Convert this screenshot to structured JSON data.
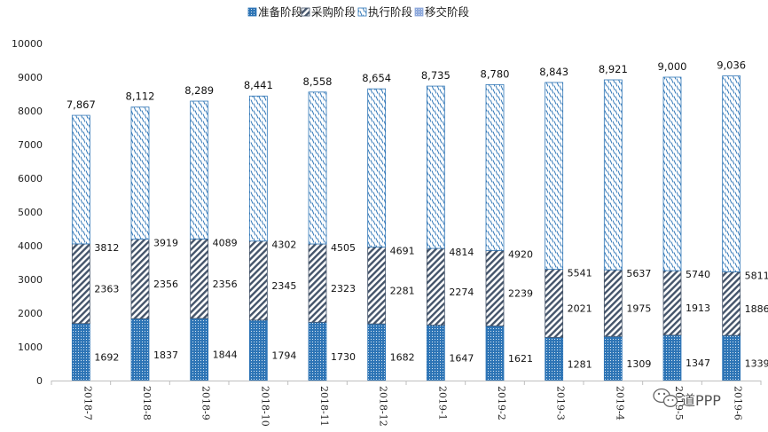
{
  "chart_data": {
    "type": "bar",
    "stacked": true,
    "categories": [
      "2018-7",
      "2018-8",
      "2018-9",
      "2018-10",
      "2018-11",
      "2018-12",
      "2019-1",
      "2019-2",
      "2019-3",
      "2019-4",
      "2019-5",
      "2019-6"
    ],
    "series": [
      {
        "name": "准备阶段",
        "values": [
          1692,
          1837,
          1844,
          1794,
          1730,
          1682,
          1647,
          1621,
          1281,
          1309,
          1347,
          1339
        ],
        "color": "#2e75b6"
      },
      {
        "name": "采购阶段",
        "values": [
          2363,
          2356,
          2356,
          2345,
          2323,
          2281,
          2274,
          2239,
          2021,
          1975,
          1913,
          1886
        ],
        "color": "#44546a"
      },
      {
        "name": "执行阶段",
        "values": [
          3812,
          3919,
          4089,
          4302,
          4505,
          4691,
          4814,
          4920,
          5541,
          5637,
          5740,
          5811
        ],
        "color": "#2e75b6"
      },
      {
        "name": "移交阶段",
        "values": [
          0,
          0,
          0,
          0,
          0,
          0,
          0,
          0,
          0,
          0,
          0,
          0
        ],
        "color": "#8faadc"
      }
    ],
    "totals": [
      "7,867",
      "8,112",
      "8,289",
      "8,441",
      "8,558",
      "8,654",
      "8,735",
      "8,780",
      "8,843",
      "8,921",
      "9,000",
      "9,036"
    ],
    "yticks": [
      0,
      1000,
      2000,
      3000,
      4000,
      5000,
      6000,
      7000,
      8000,
      9000,
      10000
    ],
    "ylim": [
      0,
      10000
    ],
    "legend_position": "top",
    "grid": false
  },
  "watermark": {
    "text": "道PPP"
  }
}
